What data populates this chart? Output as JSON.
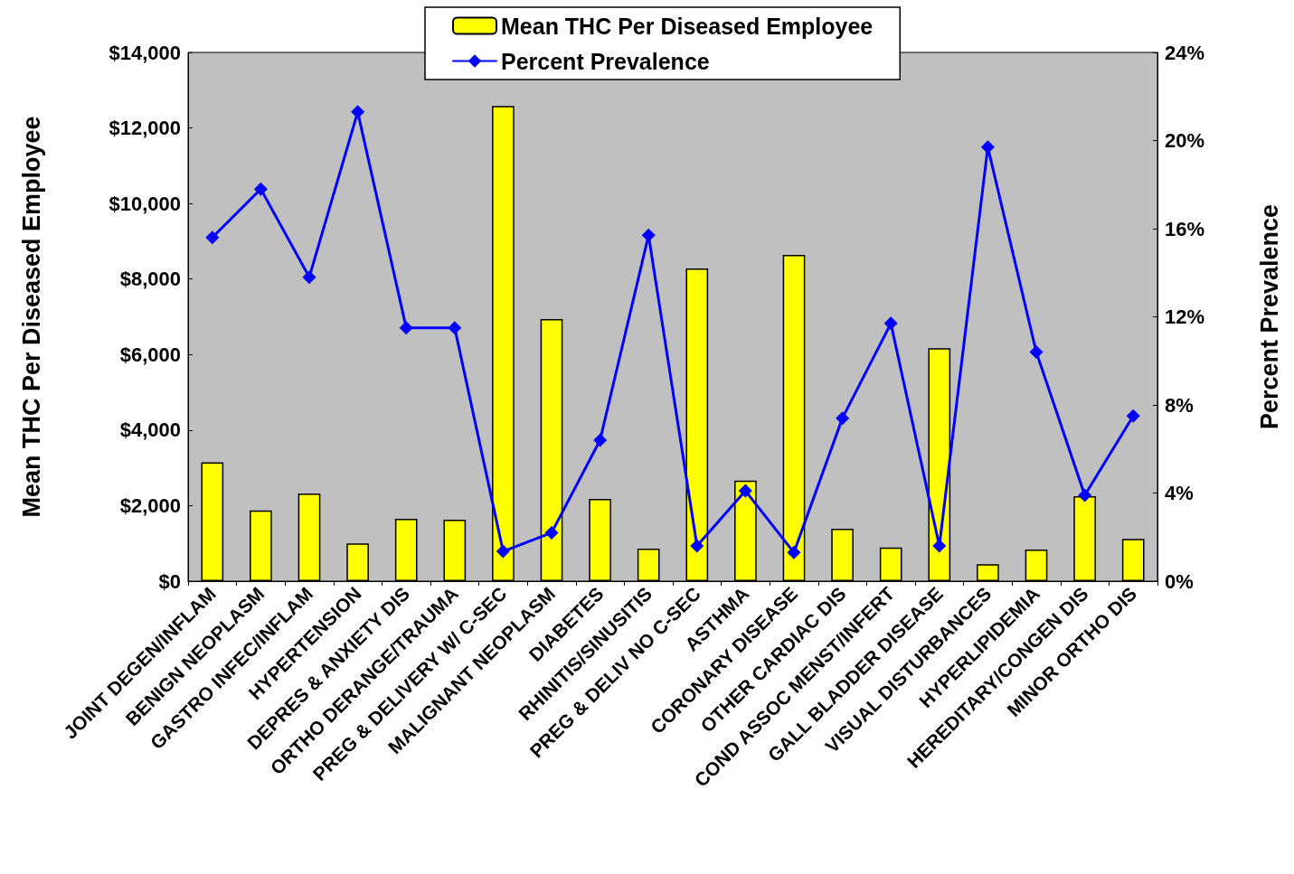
{
  "chart_data": {
    "type": "bar",
    "ylabel": "Mean THC Per Diseased Employee",
    "y2label": "Percent Prevalence",
    "categories": [
      "JOINT DEGEN/INFLAM",
      "BENIGN NEOPLASM",
      "GASTRO INFEC/INFLAM",
      "HYPERTENSION",
      "DEPRES & ANXIETY DIS",
      "ORTHO DERANGE/TRAUMA",
      "PREG & DELIVERY W/ C-SEC",
      "MALIGNANT NEOPLASM",
      "DIABETES",
      "RHINITIS/SINUSITIS",
      "PREG & DELIV NO C-SEC",
      "ASTHMA",
      "CORONARY DISEASE",
      "OTHER CARDIAC DIS",
      "COND ASSOC MENST/INFERT",
      "GALL BLADDER DISEASE",
      "VISUAL DISTURBANCES",
      "HYPERLIPIDEMIA",
      "HEREDITARY/CONGEN DIS",
      "MINOR ORTHO DIS"
    ],
    "series": [
      {
        "name": "Mean THC Per Diseased Employee",
        "color": "#ffff00",
        "values": [
          3150,
          1870,
          2320,
          1000,
          1650,
          1630,
          12580,
          6940,
          2180,
          860,
          8280,
          2660,
          8640,
          1390,
          890,
          6170,
          450,
          840,
          2250,
          1120
        ]
      },
      {
        "name": "Percent Prevalence",
        "type": "line",
        "axis": "y2",
        "color": "#0000ff",
        "values": [
          15.6,
          17.8,
          13.8,
          21.3,
          11.5,
          11.5,
          1.35,
          2.2,
          6.4,
          15.7,
          1.6,
          4.1,
          1.3,
          7.4,
          11.7,
          1.6,
          19.7,
          10.4,
          3.9,
          7.5
        ]
      }
    ],
    "ylim": [
      0,
      14000
    ],
    "yticks": [
      {
        "value": 0,
        "label": "$0"
      },
      {
        "value": 2000,
        "label": "$2,000"
      },
      {
        "value": 4000,
        "label": "$4,000"
      },
      {
        "value": 6000,
        "label": "$6,000"
      },
      {
        "value": 8000,
        "label": "$8,000"
      },
      {
        "value": 10000,
        "label": "$10,000"
      },
      {
        "value": 12000,
        "label": "$12,000"
      },
      {
        "value": 14000,
        "label": "$14,000"
      }
    ],
    "y2lim": [
      0,
      24
    ],
    "y2ticks": [
      {
        "value": 0,
        "label": "0%"
      },
      {
        "value": 4,
        "label": "4%"
      },
      {
        "value": 8,
        "label": "8%"
      },
      {
        "value": 12,
        "label": "12%"
      },
      {
        "value": 16,
        "label": "16%"
      },
      {
        "value": 20,
        "label": "20%"
      },
      {
        "value": 24,
        "label": "24%"
      }
    ],
    "legend": "top",
    "marker": "diamond",
    "grid": false
  }
}
